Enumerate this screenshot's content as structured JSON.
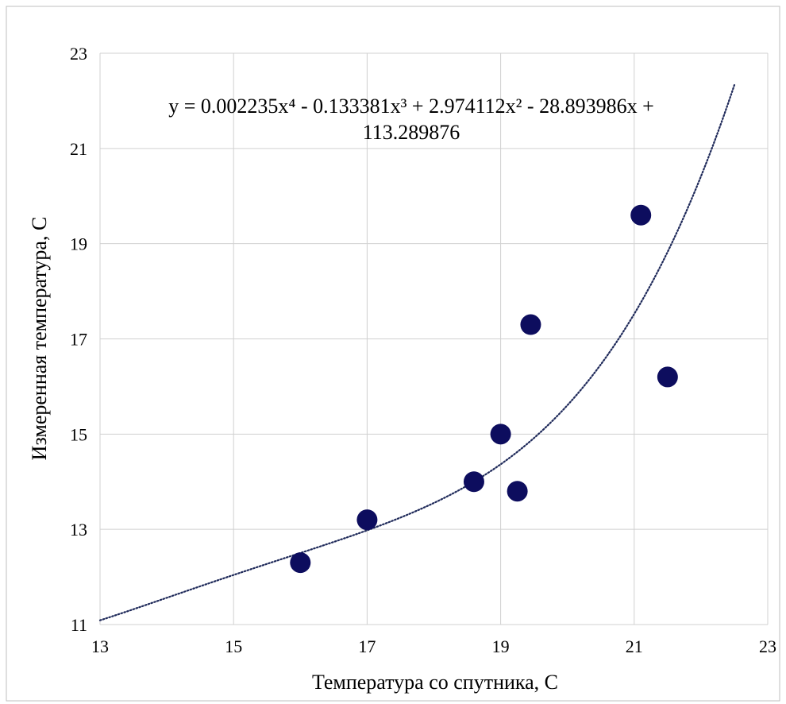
{
  "chart_data": {
    "type": "scatter",
    "xlabel": "Температура со спутника, С",
    "ylabel": "Измеренная температура, С",
    "xlim": [
      13,
      23
    ],
    "ylim": [
      11,
      23
    ],
    "x_ticks": [
      13,
      15,
      17,
      19,
      21,
      23
    ],
    "y_ticks": [
      11,
      13,
      15,
      17,
      19,
      21,
      23
    ],
    "grid": true,
    "points": [
      {
        "x": 16.0,
        "y": 12.3
      },
      {
        "x": 17.0,
        "y": 13.2
      },
      {
        "x": 18.6,
        "y": 14.0
      },
      {
        "x": 19.0,
        "y": 15.0
      },
      {
        "x": 19.25,
        "y": 13.8
      },
      {
        "x": 19.45,
        "y": 17.3
      },
      {
        "x": 21.1,
        "y": 19.6
      },
      {
        "x": 21.5,
        "y": 16.2
      }
    ],
    "marker_color": "#0d0d5e",
    "trendline": {
      "type": "polynomial",
      "order": 4,
      "coefficients": [
        0.002235,
        -0.133381,
        2.974112,
        -28.893986,
        113.289876
      ],
      "x_range": [
        13,
        22.5
      ],
      "style": "dotted",
      "color": "#1f2a5a",
      "equation_line1": "y = 0.002235x⁴ - 0.133381x³ + 2.974112x² - 28.893986x +",
      "equation_line2": "113.289876"
    }
  }
}
